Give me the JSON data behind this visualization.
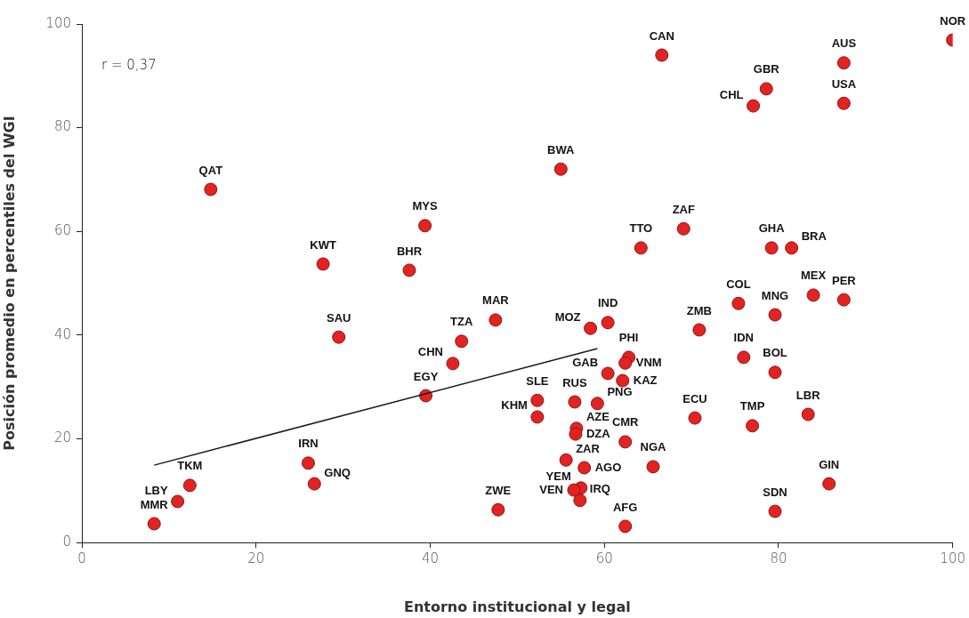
{
  "chart_data": {
    "type": "scatter",
    "xlabel": "Entorno institucional y legal",
    "ylabel": "Posición promedio en percentiles del WGI",
    "xlim": [
      0,
      100
    ],
    "ylim": [
      0,
      100
    ],
    "xticks": [
      0,
      20,
      40,
      60,
      80,
      100
    ],
    "yticks": [
      0,
      20,
      40,
      60,
      80,
      100
    ],
    "series": [
      {
        "color": "#e32322",
        "marker": "circle",
        "x": [
          100,
          66.6,
          87.5,
          78.6,
          77.1,
          87.5,
          55.0,
          14.8,
          39.4,
          69.1,
          64.2,
          79.2,
          81.5,
          27.7,
          37.6,
          84.0,
          87.5,
          75.4,
          79.6,
          47.5,
          60.4,
          58.4,
          70.9,
          29.5,
          43.6,
          62.8,
          62.4,
          76.0,
          42.6,
          79.6,
          60.4,
          62.1,
          39.5,
          52.3,
          59.2,
          56.6,
          52.3,
          83.4,
          70.4,
          77.0,
          56.8,
          56.7,
          55.6,
          57.7,
          57.3,
          56.5,
          57.2,
          62.4,
          65.6,
          47.8,
          62.4,
          26.0,
          26.7,
          12.4,
          11.0,
          8.3,
          85.8,
          79.6
        ],
        "values": [
          96.9,
          94.0,
          92.5,
          87.5,
          84.2,
          84.7,
          72.0,
          68.1,
          61.1,
          60.5,
          56.8,
          56.8,
          56.8,
          53.7,
          52.5,
          47.7,
          46.8,
          46.1,
          43.9,
          42.9,
          42.4,
          41.3,
          41.0,
          39.6,
          38.8,
          35.7,
          34.6,
          35.7,
          34.5,
          32.8,
          32.6,
          31.2,
          28.3,
          27.4,
          26.8,
          27.1,
          24.2,
          24.7,
          24.0,
          22.5,
          22.0,
          20.9,
          15.9,
          14.4,
          10.5,
          10.1,
          8.1,
          19.4,
          14.6,
          6.3,
          3.1,
          15.3,
          11.3,
          11.0,
          7.9,
          3.6,
          11.3,
          6.0
        ]
      },
      {
        "type": "line",
        "marker": "none",
        "color": "#1a1a1a",
        "line_style": "solid",
        "x": [
          8.3,
          59.2
        ],
        "values": [
          14.9,
          37.4
        ]
      }
    ],
    "annotations": [
      "r = 0,37",
      {
        "text": "NOR",
        "x": 100,
        "y": 96.9
      },
      {
        "text": "CAN",
        "x": 66.6,
        "y": 94.0
      },
      {
        "text": "AUS",
        "x": 87.5,
        "y": 92.5
      },
      {
        "text": "GBR",
        "x": 78.6,
        "y": 87.5
      },
      {
        "text": "CHL",
        "x": 77.1,
        "y": 84.2
      },
      {
        "text": "USA",
        "x": 87.5,
        "y": 84.7
      },
      {
        "text": "BWA",
        "x": 55.0,
        "y": 72.0
      },
      {
        "text": "QAT",
        "x": 14.8,
        "y": 68.1
      },
      {
        "text": "MYS",
        "x": 39.4,
        "y": 61.1
      },
      {
        "text": "ZAF",
        "x": 69.1,
        "y": 60.5
      },
      {
        "text": "TTO",
        "x": 64.2,
        "y": 56.8
      },
      {
        "text": "GHA",
        "x": 79.2,
        "y": 56.8
      },
      {
        "text": "BRA",
        "x": 81.5,
        "y": 56.8
      },
      {
        "text": "KWT",
        "x": 27.7,
        "y": 53.7
      },
      {
        "text": "BHR",
        "x": 37.6,
        "y": 52.5
      },
      {
        "text": "MEX",
        "x": 84.0,
        "y": 47.7
      },
      {
        "text": "PER",
        "x": 87.5,
        "y": 46.8
      },
      {
        "text": "COL",
        "x": 75.4,
        "y": 46.1
      },
      {
        "text": "MNG",
        "x": 79.6,
        "y": 43.9
      },
      {
        "text": "MAR",
        "x": 47.5,
        "y": 42.9
      },
      {
        "text": "IND",
        "x": 60.4,
        "y": 42.4
      },
      {
        "text": "MOZ",
        "x": 58.4,
        "y": 41.3
      },
      {
        "text": "ZMB",
        "x": 70.9,
        "y": 41.0
      },
      {
        "text": "SAU",
        "x": 29.5,
        "y": 39.6
      },
      {
        "text": "TZA",
        "x": 43.6,
        "y": 38.8
      },
      {
        "text": "PHI",
        "x": 62.8,
        "y": 35.7
      },
      {
        "text": "VNM",
        "x": 62.4,
        "y": 34.6
      },
      {
        "text": "IDN",
        "x": 76.0,
        "y": 35.7
      },
      {
        "text": "CHN",
        "x": 42.6,
        "y": 34.5
      },
      {
        "text": "BOL",
        "x": 79.6,
        "y": 32.8
      },
      {
        "text": "GAB",
        "x": 60.4,
        "y": 32.6
      },
      {
        "text": "KAZ",
        "x": 62.1,
        "y": 31.2
      },
      {
        "text": "EGY",
        "x": 39.5,
        "y": 28.3
      },
      {
        "text": "SLE",
        "x": 52.3,
        "y": 27.4
      },
      {
        "text": "PNG",
        "x": 59.2,
        "y": 26.8
      },
      {
        "text": "RUS",
        "x": 56.6,
        "y": 27.1
      },
      {
        "text": "KHM",
        "x": 52.3,
        "y": 24.2
      },
      {
        "text": "LBR",
        "x": 83.4,
        "y": 24.7
      },
      {
        "text": "ECU",
        "x": 70.4,
        "y": 24.0
      },
      {
        "text": "TMP",
        "x": 77.0,
        "y": 22.5
      },
      {
        "text": "AZE",
        "x": 56.8,
        "y": 22.0
      },
      {
        "text": "DZA",
        "x": 56.7,
        "y": 20.9
      },
      {
        "text": "ZAR",
        "x": 55.6,
        "y": 15.9
      },
      {
        "text": "AGO",
        "x": 57.7,
        "y": 14.4
      },
      {
        "text": "YEM",
        "x": 57.3,
        "y": 10.5
      },
      {
        "text": "VEN",
        "x": 56.5,
        "y": 10.1
      },
      {
        "text": "IRQ",
        "x": 57.2,
        "y": 8.1
      },
      {
        "text": "CMR",
        "x": 62.4,
        "y": 19.4
      },
      {
        "text": "NGA",
        "x": 65.6,
        "y": 14.6
      },
      {
        "text": "ZWE",
        "x": 47.8,
        "y": 6.3
      },
      {
        "text": "AFG",
        "x": 62.4,
        "y": 3.1
      },
      {
        "text": "IRN",
        "x": 26.0,
        "y": 15.3
      },
      {
        "text": "GNQ",
        "x": 26.7,
        "y": 11.3
      },
      {
        "text": "TKM",
        "x": 12.4,
        "y": 11.0
      },
      {
        "text": "LBY",
        "x": 11.0,
        "y": 7.9
      },
      {
        "text": "MMR",
        "x": 8.3,
        "y": 3.6
      },
      {
        "text": "GIN",
        "x": 85.8,
        "y": 11.3
      },
      {
        "text": "SDN",
        "x": 79.6,
        "y": 6.0
      }
    ]
  }
}
